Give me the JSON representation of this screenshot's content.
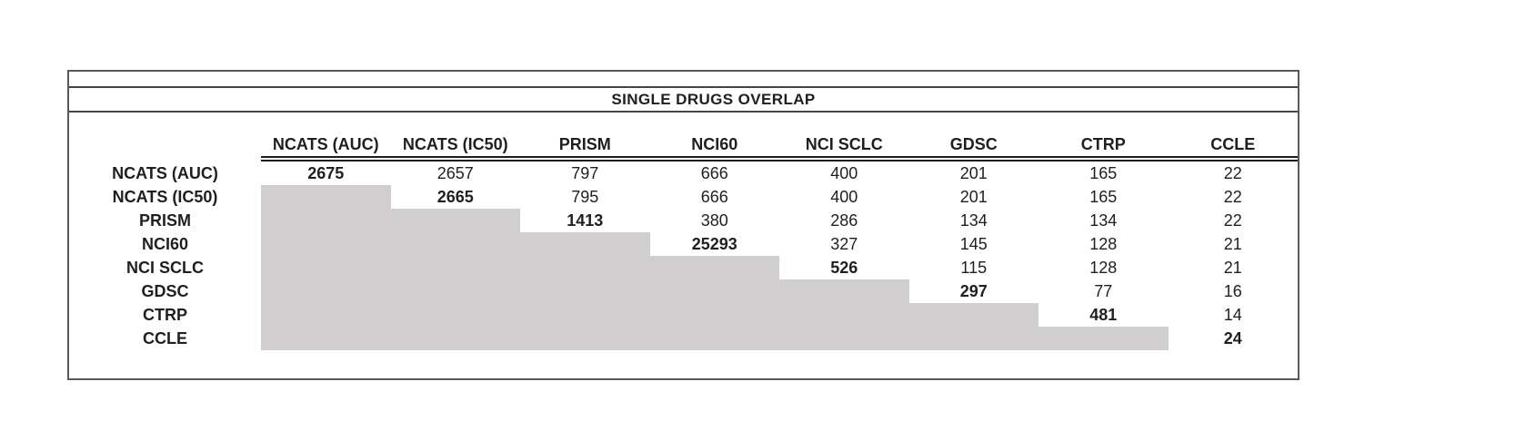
{
  "table": {
    "title": "SINGLE DRUGS OVERLAP",
    "columns": [
      "NCATS (AUC)",
      "NCATS (IC50)",
      "PRISM",
      "NCI60",
      "NCI SCLC",
      "GDSC",
      "CTRP",
      "CCLE"
    ],
    "row_labels": [
      "NCATS (AUC)",
      "NCATS (IC50)",
      "PRISM",
      "NCI60",
      "NCI SCLC",
      "GDSC",
      "CTRP",
      "CCLE"
    ],
    "matrix": [
      [
        2675,
        2657,
        797,
        666,
        400,
        201,
        165,
        22
      ],
      [
        null,
        2665,
        795,
        666,
        400,
        201,
        165,
        22
      ],
      [
        null,
        null,
        1413,
        380,
        286,
        134,
        134,
        22
      ],
      [
        null,
        null,
        null,
        25293,
        327,
        145,
        128,
        21
      ],
      [
        null,
        null,
        null,
        null,
        526,
        115,
        128,
        21
      ],
      [
        null,
        null,
        null,
        null,
        null,
        297,
        77,
        16
      ],
      [
        null,
        null,
        null,
        null,
        null,
        null,
        481,
        14
      ],
      [
        null,
        null,
        null,
        null,
        null,
        null,
        null,
        24
      ]
    ],
    "notes": {
      "diagonal_style": "bold",
      "lower_triangle_style": "shaded"
    },
    "colors": {
      "shaded_cell": "#d0cece",
      "border": "#595959",
      "text": "#1f1f1f"
    }
  }
}
